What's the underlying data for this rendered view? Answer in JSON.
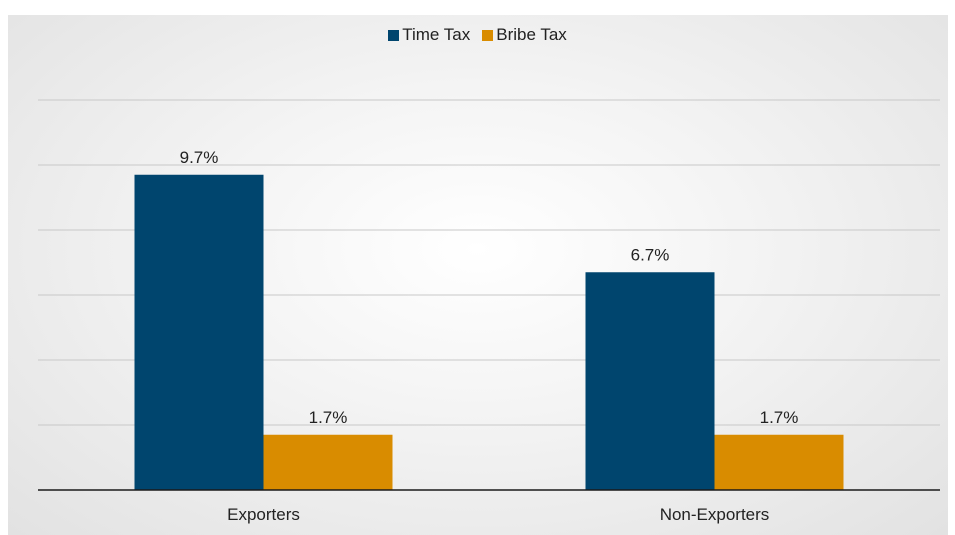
{
  "chart_data": {
    "type": "bar",
    "title": "",
    "xlabel": "",
    "ylabel": "",
    "categories": [
      "Exporters",
      "Non-Exporters"
    ],
    "series": [
      {
        "name": "Time Tax",
        "color": "#00456e",
        "values": [
          9.7,
          6.7
        ],
        "labels": [
          "9.7%",
          "6.7%"
        ]
      },
      {
        "name": "Bribe Tax",
        "color": "#d98c00",
        "values": [
          1.7,
          1.7
        ],
        "labels": [
          "1.7%",
          "1.7%"
        ]
      }
    ],
    "ylim": [
      0,
      12
    ],
    "grid": true,
    "legend_position": "top-center"
  }
}
